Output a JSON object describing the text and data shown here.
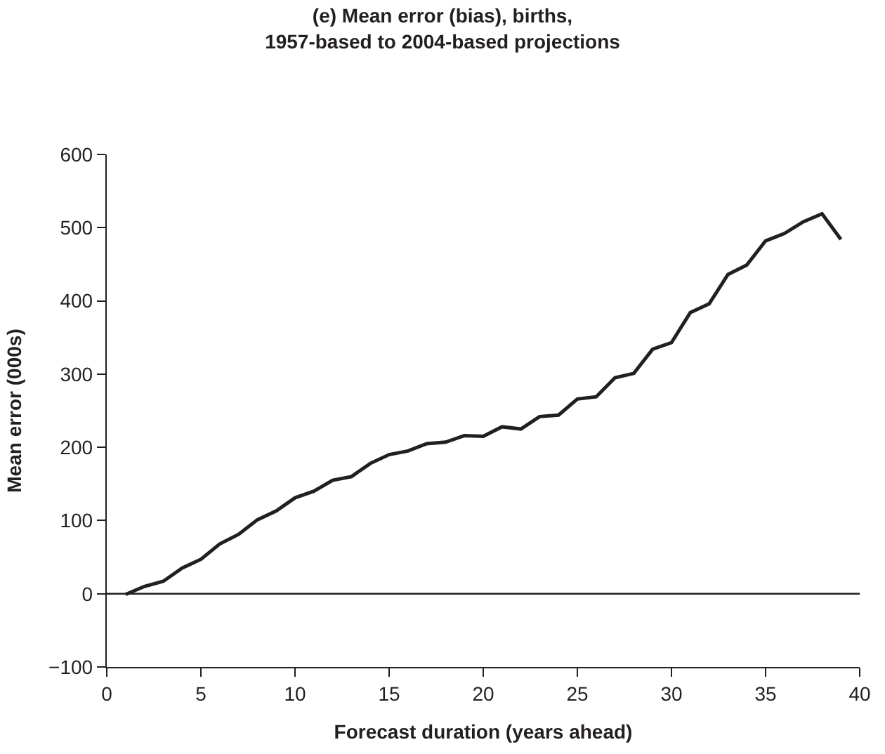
{
  "chart_data": {
    "type": "line",
    "title": "(e) Mean error (bias), births,\n1957-based to 2004-based projections",
    "xlabel": "Forecast duration (years ahead)",
    "ylabel": "Mean error (000s)",
    "x": [
      1,
      2,
      3,
      4,
      5,
      6,
      7,
      8,
      9,
      10,
      11,
      12,
      13,
      14,
      15,
      16,
      17,
      18,
      19,
      20,
      21,
      22,
      23,
      24,
      25,
      26,
      27,
      28,
      29,
      30,
      31,
      32,
      33,
      34,
      35,
      36,
      37,
      38,
      39
    ],
    "series": [
      {
        "color": "#231f20",
        "values": [
          -1,
          10,
          17,
          35,
          47,
          68,
          81,
          101,
          113,
          131,
          140,
          155,
          160,
          178,
          190,
          195,
          205,
          207,
          216,
          215,
          228,
          225,
          242,
          244,
          266,
          269,
          295,
          301,
          334,
          343,
          384,
          396,
          436,
          449,
          482,
          492,
          508,
          519,
          484
        ]
      }
    ],
    "xlim": [
      0,
      40
    ],
    "xticks": [
      0,
      5,
      10,
      15,
      20,
      25,
      30,
      35,
      40
    ],
    "ylim": [
      -100,
      600
    ],
    "yticks": [
      {
        "value": -100,
        "label": "−100"
      },
      0,
      100,
      200,
      300,
      400,
      500,
      600
    ],
    "ref_lines": [
      {
        "axis": "y",
        "value": 0,
        "color": "#231f20"
      }
    ],
    "marker": "none",
    "line_style": "solid"
  }
}
